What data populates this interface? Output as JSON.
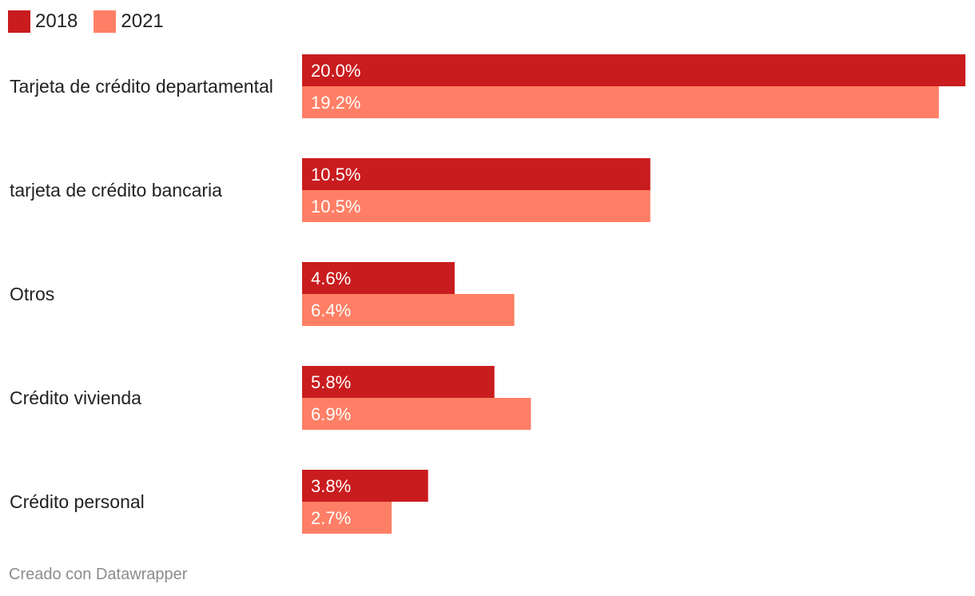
{
  "chart_data": {
    "type": "bar",
    "orientation": "horizontal",
    "categories": [
      "Tarjeta de crédito departamental",
      "tarjeta de crédito bancaria",
      "Otros",
      "Crédito vivienda",
      "Crédito personal"
    ],
    "series": [
      {
        "name": "2018",
        "color": "#c91c1f",
        "values": [
          20.0,
          10.5,
          4.6,
          5.8,
          3.8
        ],
        "labels": [
          "20.0%",
          "10.5%",
          "4.6%",
          "5.8%",
          "3.8%"
        ]
      },
      {
        "name": "2021",
        "color": "#ff7f66",
        "values": [
          19.2,
          10.5,
          6.4,
          6.9,
          2.7
        ],
        "labels": [
          "19.2%",
          "10.5%",
          "6.4%",
          "6.9%",
          "2.7%"
        ]
      }
    ],
    "xlim": [
      0,
      20
    ],
    "legend": "top-left"
  },
  "footer": {
    "credit": "Creado con Datawrapper"
  }
}
